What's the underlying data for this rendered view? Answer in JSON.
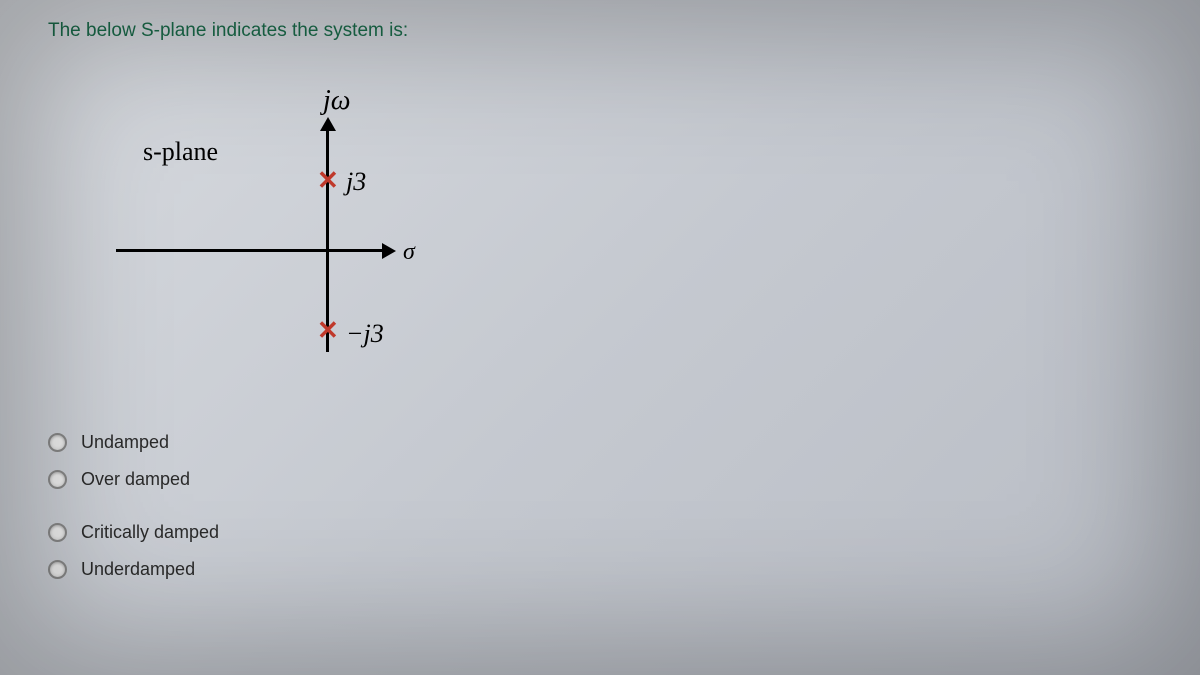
{
  "question": "The below S-plane indicates the system is:",
  "diagram": {
    "plane_label": "s-plane",
    "imag_axis_label": "jω",
    "real_axis_label": "σ",
    "pole_marker": "✕",
    "pole_upper_label": "j3",
    "pole_lower_label": "−j3",
    "pole_color": "#c0392b",
    "axis_color": "#000000"
  },
  "options": [
    {
      "label": "Undamped",
      "selected": false
    },
    {
      "label": "Over damped",
      "selected": false
    },
    {
      "label": "Critically damped",
      "selected": false
    },
    {
      "label": "Underdamped",
      "selected": false
    }
  ]
}
